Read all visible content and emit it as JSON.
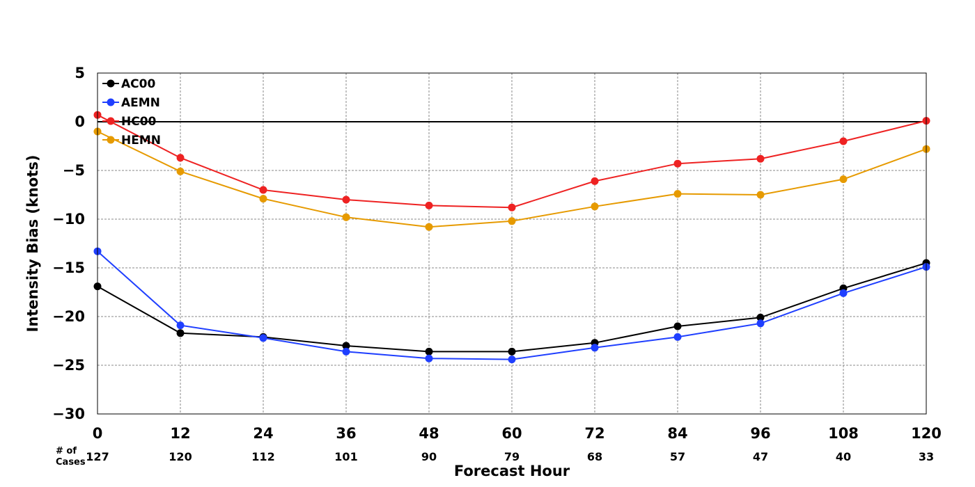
{
  "chart_data": {
    "type": "line",
    "xlabel": "Forecast Hour",
    "ylabel": "Intensity Bias (knots)",
    "x": [
      0,
      12,
      24,
      36,
      48,
      60,
      72,
      84,
      96,
      108,
      120
    ],
    "xlim": [
      0,
      120
    ],
    "ylim": [
      -30,
      5
    ],
    "yticks": [
      5,
      0,
      -5,
      -10,
      -15,
      -20,
      -25,
      -30
    ],
    "ytick_labels": [
      "5",
      "0",
      "−5",
      "−10",
      "−15",
      "−20",
      "−25",
      "−30"
    ],
    "xtick_labels": [
      "0",
      "12",
      "24",
      "36",
      "48",
      "60",
      "72",
      "84",
      "96",
      "108",
      "120"
    ],
    "grid": true,
    "zero_line": true,
    "legend_position": "top-left",
    "cases_title": "# of Cases",
    "cases_title_lines": [
      "# of",
      "Cases"
    ],
    "cases": [
      "127",
      "120",
      "112",
      "101",
      "90",
      "79",
      "68",
      "57",
      "47",
      "40",
      "33"
    ],
    "series": [
      {
        "name": "AC00",
        "color": "#000000",
        "values": [
          -16.9,
          -21.7,
          -22.1,
          -23.0,
          -23.6,
          -23.6,
          -22.7,
          -21.0,
          -20.1,
          -17.1,
          -14.5
        ]
      },
      {
        "name": "AEMN",
        "color": "#1f3fff",
        "values": [
          -13.3,
          -20.9,
          -22.2,
          -23.6,
          -24.3,
          -24.4,
          -23.2,
          -22.1,
          -20.7,
          -17.6,
          -14.9
        ]
      },
      {
        "name": "HC00",
        "color": "#ee2222",
        "values": [
          0.7,
          -3.7,
          -7.0,
          -8.0,
          -8.6,
          -8.8,
          -6.1,
          -4.3,
          -3.8,
          -2.0,
          0.1
        ]
      },
      {
        "name": "HEMN",
        "color": "#e69a00",
        "values": [
          -1.0,
          -5.1,
          -7.9,
          -9.8,
          -10.8,
          -10.2,
          -8.7,
          -7.4,
          -7.5,
          -5.9,
          -2.8
        ]
      }
    ]
  }
}
